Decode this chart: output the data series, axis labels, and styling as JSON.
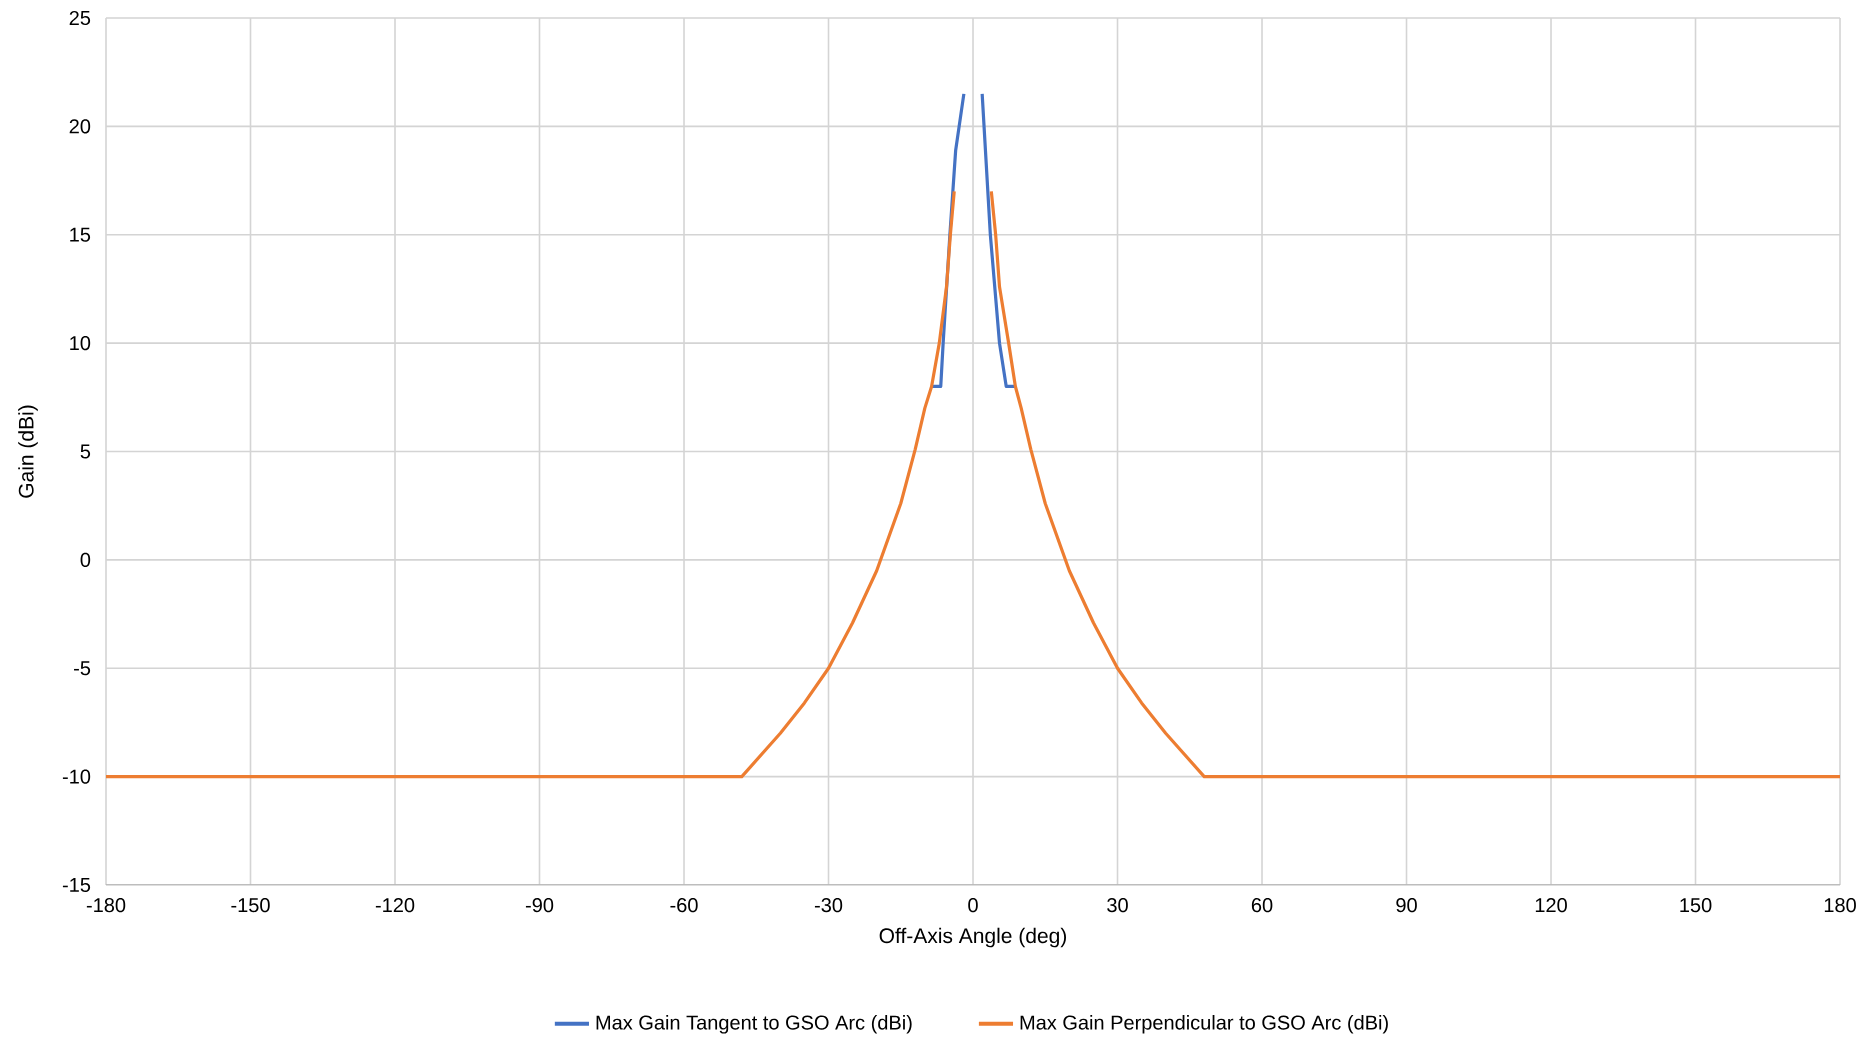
{
  "chart_data": {
    "type": "line",
    "xlabel": "Off-Axis Angle (deg)",
    "ylabel": "Gain (dBi)",
    "xlim": [
      -180,
      180
    ],
    "ylim": [
      -15,
      25
    ],
    "xticks": [
      -180,
      -150,
      -120,
      -90,
      -60,
      -30,
      0,
      30,
      60,
      90,
      120,
      150,
      180
    ],
    "yticks": [
      -15,
      -10,
      -5,
      0,
      5,
      10,
      15,
      20,
      25
    ],
    "grid": true,
    "legend": "bottom",
    "marker": "none",
    "line_style": "solid",
    "series": [
      {
        "name": "Max Gain Tangent to GSO Arc (dBi)",
        "color": "#4472c4",
        "x": [
          -8.6,
          -6.7,
          -6.2,
          -4.8,
          -3.6,
          -1.9,
          0,
          1.9,
          3.6,
          5.5,
          6.9,
          8.8
        ],
        "values": [
          8,
          8,
          10,
          15,
          18.9,
          21.5,
          null,
          21.5,
          15,
          10,
          8,
          8
        ]
      },
      {
        "name": "Max Gain Perpendicular to GSO Arc (dBi)",
        "color": "#ed7d31",
        "x": [
          -180,
          -48,
          -40,
          -35,
          -30,
          -25,
          -20,
          -15,
          -12,
          -10,
          -8.6,
          -7,
          -5.5,
          -4.7,
          -3.9,
          0,
          3.8,
          4.7,
          5.5,
          7.4,
          8.8,
          10,
          12,
          15,
          20,
          25,
          30,
          35,
          40,
          48,
          180
        ],
        "values": [
          -10,
          -10,
          -8,
          -6.6,
          -5,
          -2.9,
          -0.5,
          2.6,
          5.1,
          7,
          8,
          10,
          12.6,
          15,
          17,
          null,
          17,
          15,
          12.6,
          10,
          8,
          7,
          5.1,
          2.6,
          -0.5,
          -2.9,
          -5,
          -6.6,
          -8,
          -10,
          -10
        ]
      }
    ]
  }
}
